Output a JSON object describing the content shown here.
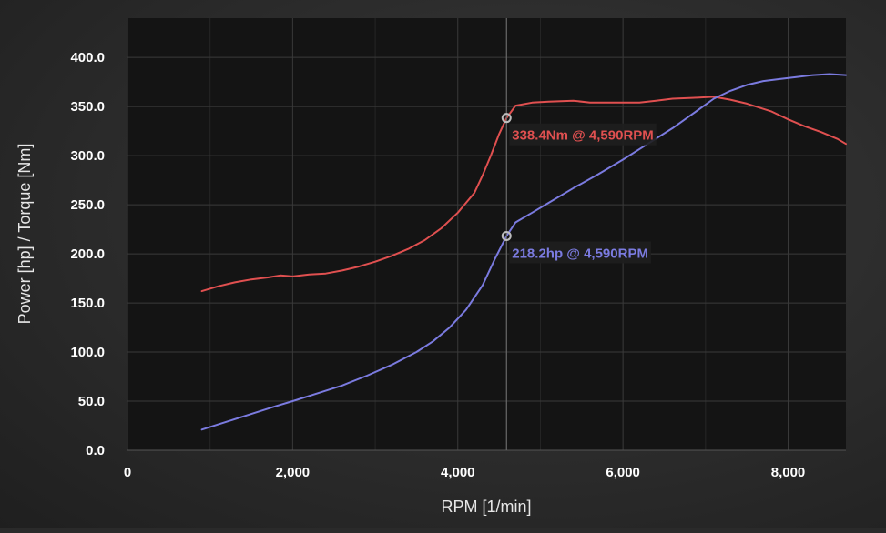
{
  "chart_data": {
    "type": "line",
    "xlabel": "RPM [1/min]",
    "ylabel": "Power [hp] / Torque [Nm]",
    "xlim": [
      0,
      8700
    ],
    "ylim": [
      0,
      440
    ],
    "x_ticks": [
      0,
      2000,
      4000,
      6000,
      8000
    ],
    "x_tick_labels": [
      "0",
      "2,000",
      "4,000",
      "6,000",
      "8,000"
    ],
    "y_ticks": [
      0,
      50,
      100,
      150,
      200,
      250,
      300,
      350,
      400
    ],
    "y_tick_labels": [
      "0.0",
      "50.0",
      "100.0",
      "150.0",
      "200.0",
      "250.0",
      "300.0",
      "350.0",
      "400.0"
    ],
    "grid": true,
    "cursor": {
      "x": 4590
    },
    "series": [
      {
        "name": "Torque",
        "color": "#e05050",
        "points": [
          [
            900,
            162
          ],
          [
            1100,
            167
          ],
          [
            1300,
            171
          ],
          [
            1500,
            174
          ],
          [
            1700,
            176
          ],
          [
            1850,
            178
          ],
          [
            2000,
            177
          ],
          [
            2200,
            179
          ],
          [
            2400,
            180
          ],
          [
            2600,
            183
          ],
          [
            2800,
            187
          ],
          [
            3000,
            192
          ],
          [
            3200,
            198
          ],
          [
            3400,
            205
          ],
          [
            3600,
            214
          ],
          [
            3800,
            226
          ],
          [
            4000,
            242
          ],
          [
            4100,
            252
          ],
          [
            4200,
            262
          ],
          [
            4300,
            280
          ],
          [
            4400,
            300
          ],
          [
            4500,
            322
          ],
          [
            4590,
            338.4
          ],
          [
            4700,
            351
          ],
          [
            4900,
            354
          ],
          [
            5100,
            355
          ],
          [
            5400,
            356
          ],
          [
            5600,
            354
          ],
          [
            6000,
            354
          ],
          [
            6200,
            354
          ],
          [
            6400,
            356
          ],
          [
            6600,
            358
          ],
          [
            6900,
            359
          ],
          [
            7100,
            360
          ],
          [
            7300,
            357
          ],
          [
            7500,
            353
          ],
          [
            7800,
            345
          ],
          [
            8000,
            337
          ],
          [
            8200,
            330
          ],
          [
            8400,
            324
          ],
          [
            8600,
            317
          ],
          [
            8700,
            312
          ]
        ]
      },
      {
        "name": "Power",
        "color": "#7b7be0",
        "points": [
          [
            900,
            21
          ],
          [
            1200,
            29
          ],
          [
            1500,
            37
          ],
          [
            1800,
            45
          ],
          [
            2000,
            50
          ],
          [
            2300,
            58
          ],
          [
            2600,
            66
          ],
          [
            2900,
            76
          ],
          [
            3200,
            87
          ],
          [
            3500,
            100
          ],
          [
            3700,
            111
          ],
          [
            3900,
            125
          ],
          [
            4100,
            143
          ],
          [
            4300,
            168
          ],
          [
            4450,
            195
          ],
          [
            4590,
            218.2
          ],
          [
            4700,
            232
          ],
          [
            4900,
            242
          ],
          [
            5100,
            252
          ],
          [
            5400,
            267
          ],
          [
            5700,
            281
          ],
          [
            6000,
            296
          ],
          [
            6300,
            312
          ],
          [
            6600,
            328
          ],
          [
            6900,
            346
          ],
          [
            7100,
            358
          ],
          [
            7300,
            366
          ],
          [
            7500,
            372
          ],
          [
            7700,
            376
          ],
          [
            7900,
            378
          ],
          [
            8100,
            380
          ],
          [
            8300,
            382
          ],
          [
            8500,
            383
          ],
          [
            8700,
            382
          ]
        ]
      }
    ],
    "annotations": [
      {
        "series": "Torque",
        "x": 4590,
        "y": 338.4,
        "text": "338.4Nm @ 4,590RPM",
        "color": "#e05050"
      },
      {
        "series": "Power",
        "x": 4590,
        "y": 218.2,
        "text": "218.2hp @ 4,590RPM",
        "color": "#7b7be0"
      }
    ]
  }
}
